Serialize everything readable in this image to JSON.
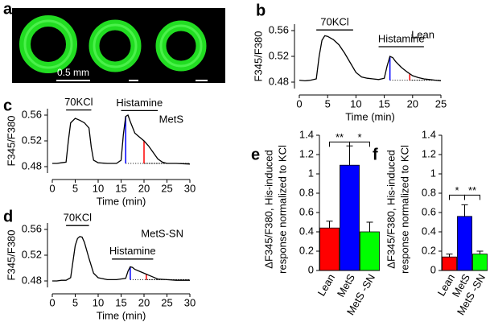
{
  "image_panel": {
    "panel": "a",
    "scale_label": "0.5 mm"
  },
  "chart_data": [
    {
      "type": "line",
      "panel": "b",
      "name": "Lean",
      "xlabel": "Time (min)",
      "ylabel": "F345/F380",
      "x": [
        0,
        1,
        2,
        3,
        3.5,
        4,
        4.5,
        5,
        6,
        7,
        8,
        9,
        10,
        11,
        12,
        13,
        14,
        15,
        15.5,
        16,
        16.5,
        17,
        18,
        19,
        20,
        21,
        22,
        23,
        24,
        25
      ],
      "values": [
        0.483,
        0.482,
        0.483,
        0.485,
        0.52,
        0.545,
        0.552,
        0.551,
        0.546,
        0.538,
        0.525,
        0.51,
        0.495,
        0.488,
        0.486,
        0.485,
        0.484,
        0.486,
        0.505,
        0.52,
        0.518,
        0.512,
        0.503,
        0.496,
        0.49,
        0.487,
        0.485,
        0.484,
        0.483,
        0.482
      ],
      "color": "#000000",
      "xlim": [
        0,
        25
      ],
      "xticks": [
        0,
        5,
        10,
        15,
        20,
        25
      ],
      "ylim": [
        0.47,
        0.57
      ],
      "yticks": [
        0.48,
        0.52,
        0.56
      ],
      "annotations": [
        {
          "text": "70KCl",
          "x": [
            3,
            9.5
          ],
          "y": 0.561
        },
        {
          "text": "Histamine",
          "x": [
            14,
            22
          ],
          "y": 0.535
        }
      ],
      "vlines": [
        {
          "x": 16,
          "y0": 0.483,
          "y1": 0.52,
          "color": "#0000ff"
        },
        {
          "x": 19.5,
          "y0": 0.483,
          "y1": 0.493,
          "color": "#ff0000"
        }
      ]
    },
    {
      "type": "line",
      "panel": "c",
      "name": "MetS",
      "xlabel": "Time (min)",
      "ylabel": "F345/F380",
      "x": [
        0,
        1,
        2,
        3,
        3.5,
        4,
        5,
        6,
        7,
        8,
        8.5,
        9,
        10,
        12,
        14,
        15,
        15.5,
        16,
        16.5,
        17,
        18,
        19,
        20,
        21,
        22,
        23,
        24,
        25,
        27,
        30
      ],
      "values": [
        0.485,
        0.485,
        0.486,
        0.487,
        0.52,
        0.548,
        0.555,
        0.552,
        0.548,
        0.54,
        0.51,
        0.49,
        0.486,
        0.485,
        0.485,
        0.49,
        0.53,
        0.558,
        0.56,
        0.55,
        0.532,
        0.526,
        0.52,
        0.512,
        0.502,
        0.492,
        0.487,
        0.485,
        0.485,
        0.484
      ],
      "color": "#000000",
      "xlim": [
        0,
        30
      ],
      "xticks": [
        0,
        5,
        10,
        15,
        20,
        25,
        30
      ],
      "ylim": [
        0.47,
        0.57
      ],
      "yticks": [
        0.48,
        0.52,
        0.56
      ],
      "annotations": [
        {
          "text": "70KCl",
          "x": [
            3,
            8.5
          ],
          "y": 0.568
        },
        {
          "text": "Histamine",
          "x": [
            15,
            23
          ],
          "y": 0.567
        }
      ],
      "vlines": [
        {
          "x": 16,
          "y0": 0.485,
          "y1": 0.558,
          "color": "#0000ff"
        },
        {
          "x": 20,
          "y0": 0.485,
          "y1": 0.52,
          "color": "#ff0000"
        }
      ]
    },
    {
      "type": "line",
      "panel": "d",
      "name": "MetS-SN",
      "xlabel": "Time (min)",
      "ylabel": "F345/F380",
      "x": [
        0,
        1,
        2,
        3,
        4,
        4.5,
        5,
        5.5,
        6,
        6.5,
        7,
        8,
        9,
        10,
        12,
        14,
        16,
        16.5,
        17,
        17.5,
        18,
        19,
        20,
        21,
        22,
        23,
        25,
        27,
        30
      ],
      "values": [
        0.48,
        0.48,
        0.481,
        0.481,
        0.485,
        0.51,
        0.535,
        0.546,
        0.549,
        0.548,
        0.54,
        0.515,
        0.492,
        0.485,
        0.482,
        0.482,
        0.484,
        0.495,
        0.502,
        0.501,
        0.498,
        0.495,
        0.492,
        0.489,
        0.486,
        0.483,
        0.482,
        0.481,
        0.481
      ],
      "color": "#000000",
      "xlim": [
        0,
        30
      ],
      "xticks": [
        0,
        5,
        10,
        15,
        20,
        25,
        30
      ],
      "ylim": [
        0.47,
        0.57
      ],
      "yticks": [
        0.48,
        0.52,
        0.56
      ],
      "annotations": [
        {
          "text": "70KCl",
          "x": [
            3,
            8
          ],
          "y": 0.566
        },
        {
          "text": "Histamine",
          "x": [
            13,
            22
          ],
          "y": 0.514
        }
      ],
      "vlines": [
        {
          "x": 17,
          "y0": 0.482,
          "y1": 0.502,
          "color": "#0000ff"
        },
        {
          "x": 20.5,
          "y0": 0.482,
          "y1": 0.49,
          "color": "#ff0000"
        }
      ]
    },
    {
      "type": "bar",
      "panel": "e",
      "ylabel": [
        "ΔF345/F380, His-induced",
        "response normalized to KCl"
      ],
      "categories": [
        "Lean",
        "MetS",
        "MetS -SN"
      ],
      "values": [
        0.44,
        1.09,
        0.4
      ],
      "errors": [
        0.07,
        0.2,
        0.1
      ],
      "colors": [
        "#ff0000",
        "#0000ff",
        "#00ff00"
      ],
      "ylim": [
        0,
        1.4
      ],
      "yticks": [
        0,
        0.2,
        0.4,
        0.6,
        0.8,
        1.0,
        1.2,
        1.4
      ],
      "significance": [
        {
          "text": "**",
          "from": "Lean",
          "to": "MetS",
          "y": 1.33
        },
        {
          "text": "*",
          "from": "MetS",
          "to": "MetS -SN",
          "y": 1.33
        }
      ]
    },
    {
      "type": "bar",
      "panel": "f",
      "ylabel": [
        "ΔF345/F380, His-induced",
        "response normalized to KCl"
      ],
      "categories": [
        "Lean",
        "MetS",
        "MetS -SN"
      ],
      "values": [
        0.14,
        0.56,
        0.17
      ],
      "errors": [
        0.03,
        0.12,
        0.03
      ],
      "colors": [
        "#ff0000",
        "#0000ff",
        "#00ff00"
      ],
      "ylim": [
        0,
        1.4
      ],
      "yticks": [
        0,
        0.2,
        0.4,
        0.6,
        0.8,
        1.0,
        1.2,
        1.4
      ],
      "significance": [
        {
          "text": "*",
          "from": "Lean",
          "to": "MetS",
          "y": 0.78
        },
        {
          "text": "**",
          "from": "MetS",
          "to": "MetS -SN",
          "y": 0.78
        }
      ]
    }
  ]
}
